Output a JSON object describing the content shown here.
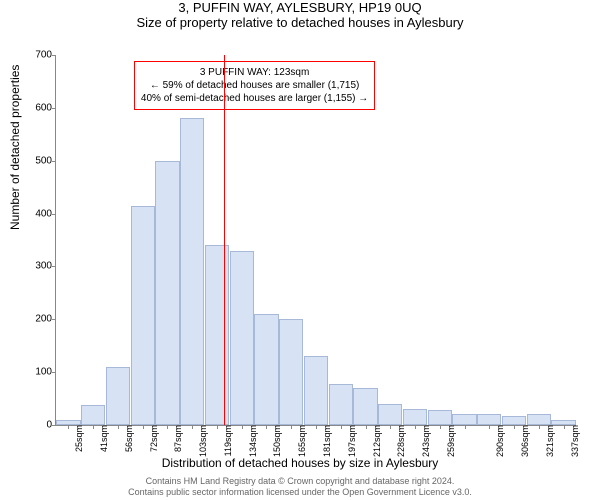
{
  "header": {
    "title": "3, PUFFIN WAY, AYLESBURY, HP19 0UQ",
    "subtitle": "Size of property relative to detached houses in Aylesbury"
  },
  "chart": {
    "type": "bar",
    "ylabel": "Number of detached properties",
    "xlabel": "Distribution of detached houses by size in Aylesbury",
    "ylim": [
      0,
      700
    ],
    "ytick_step": 100,
    "background_color": "#ffffff",
    "axis_color": "#888888",
    "bar_fill": "#d7e2f4",
    "bar_stroke": "#a7b8d8",
    "marker_color": "#ff0000",
    "marker_x_value": 123,
    "categories": [
      "25sqm",
      "41sqm",
      "56sqm",
      "72sqm",
      "87sqm",
      "103sqm",
      "119sqm",
      "134sqm",
      "150sqm",
      "165sqm",
      "181sqm",
      "197sqm",
      "212sqm",
      "228sqm",
      "243sqm",
      "259sqm",
      "",
      "290sqm",
      "306sqm",
      "321sqm",
      "337sqm"
    ],
    "values": [
      10,
      38,
      110,
      415,
      500,
      580,
      340,
      330,
      210,
      200,
      130,
      78,
      70,
      40,
      30,
      28,
      20,
      20,
      18,
      20,
      10
    ],
    "info_box": {
      "line1": "3 PUFFIN WAY: 123sqm",
      "line2": "← 59% of detached houses are smaller (1,715)",
      "line3": "40% of semi-detached houses are larger (1,155) →",
      "border_color": "#ff0000"
    }
  },
  "footer": {
    "line1": "Contains HM Land Registry data © Crown copyright and database right 2024.",
    "line2": "Contains public sector information licensed under the Open Government Licence v3.0."
  }
}
